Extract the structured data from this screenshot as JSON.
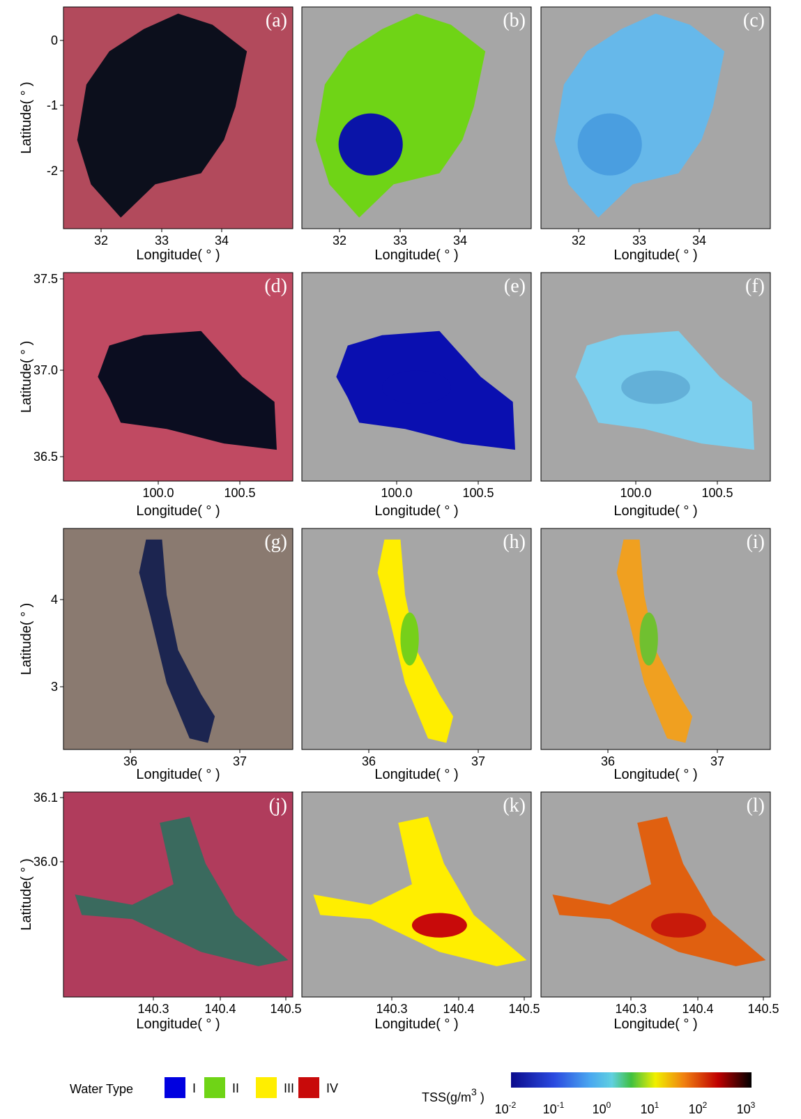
{
  "xlabel": "Longitude( ° )",
  "ylabel": "Latitude( ° )",
  "rows": [
    {
      "panels": [
        "(a)",
        "(b)",
        "(c)"
      ],
      "xticks": [
        "32",
        "33",
        "34"
      ],
      "yticks": [
        "0",
        "-1",
        "-2"
      ]
    },
    {
      "panels": [
        "(d)",
        "(e)",
        "(f)"
      ],
      "xticks": [
        "100.0",
        "100.5"
      ],
      "yticks": [
        "37.5",
        "37.0",
        "36.5"
      ]
    },
    {
      "panels": [
        "(g)",
        "(h)",
        "(i)"
      ],
      "xticks": [
        "36",
        "37"
      ],
      "yticks": [
        "4",
        "3"
      ]
    },
    {
      "panels": [
        "(j)",
        "(k)",
        "(l)"
      ],
      "xticks": [
        "140.3",
        "140.4",
        "140.5"
      ],
      "yticks": [
        "36.1",
        "36.0"
      ]
    }
  ],
  "legend": {
    "title": "Water Type",
    "items": [
      "I",
      "II",
      "III",
      "IV"
    ]
  },
  "colorbar": {
    "title": "TSS(g/m",
    "title_sup": "3",
    "title_end": " )",
    "ticks": [
      {
        "base": "10",
        "exp": "-2"
      },
      {
        "base": "10",
        "exp": "-1"
      },
      {
        "base": "10",
        "exp": "0"
      },
      {
        "base": "10",
        "exp": "1"
      },
      {
        "base": "10",
        "exp": "2"
      },
      {
        "base": "10",
        "exp": "3"
      }
    ]
  }
}
